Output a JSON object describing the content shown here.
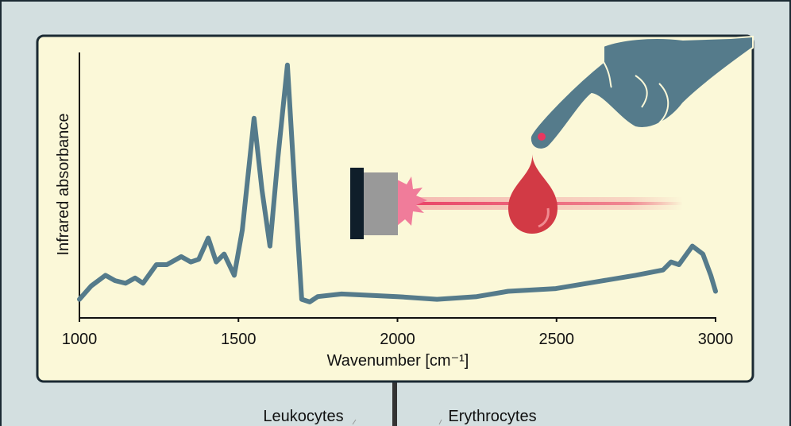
{
  "chart_data": {
    "type": "line",
    "ylabel": "Infrared absorbance",
    "xlabel": "Wavenumber [cm⁻¹]",
    "xlim": [
      1000,
      3000
    ],
    "xticks": [
      1000,
      1500,
      2000,
      2500,
      3000
    ],
    "ylim": [
      0,
      1
    ],
    "color": "#557b8b",
    "x": [
      1000,
      1037,
      1082,
      1112,
      1145,
      1175,
      1200,
      1242,
      1275,
      1320,
      1350,
      1375,
      1405,
      1430,
      1455,
      1487,
      1512,
      1549,
      1574,
      1599,
      1624,
      1654,
      1679,
      1699,
      1724,
      1749,
      1824,
      1999,
      2124,
      2249,
      2348,
      2498,
      2648,
      2748,
      2835,
      2860,
      2885,
      2927,
      2960,
      2985,
      3000
    ],
    "values": [
      0.07,
      0.12,
      0.16,
      0.14,
      0.13,
      0.15,
      0.13,
      0.2,
      0.2,
      0.23,
      0.21,
      0.22,
      0.3,
      0.21,
      0.24,
      0.16,
      0.33,
      0.75,
      0.48,
      0.27,
      0.6,
      0.95,
      0.45,
      0.07,
      0.06,
      0.08,
      0.09,
      0.08,
      0.07,
      0.08,
      0.1,
      0.11,
      0.14,
      0.16,
      0.18,
      0.21,
      0.2,
      0.27,
      0.24,
      0.16,
      0.1
    ],
    "annotations": [
      "Leukocytes",
      "Erythrocytes"
    ]
  }
}
